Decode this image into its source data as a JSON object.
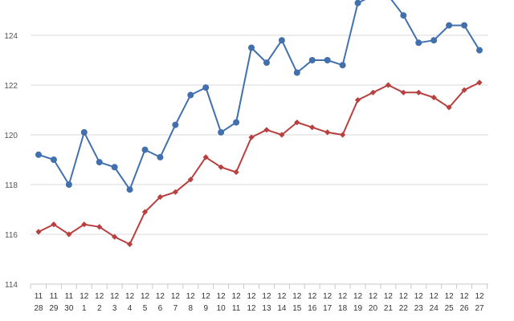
{
  "colors": {
    "series_blue": "#4170ad",
    "series_red": "#b8403f",
    "grid": "#d9d9d9"
  },
  "chart_data": {
    "type": "line",
    "x": [
      [
        "11",
        "28"
      ],
      [
        "11",
        "29"
      ],
      [
        "11",
        "30"
      ],
      [
        "12",
        "1"
      ],
      [
        "12",
        "2"
      ],
      [
        "12",
        "3"
      ],
      [
        "12",
        "4"
      ],
      [
        "12",
        "5"
      ],
      [
        "12",
        "6"
      ],
      [
        "12",
        "7"
      ],
      [
        "12",
        "8"
      ],
      [
        "12",
        "9"
      ],
      [
        "12",
        "10"
      ],
      [
        "12",
        "11"
      ],
      [
        "12",
        "12"
      ],
      [
        "12",
        "13"
      ],
      [
        "12",
        "14"
      ],
      [
        "12",
        "15"
      ],
      [
        "12",
        "16"
      ],
      [
        "12",
        "17"
      ],
      [
        "12",
        "18"
      ],
      [
        "12",
        "19"
      ],
      [
        "12",
        "20"
      ],
      [
        "12",
        "21"
      ],
      [
        "12",
        "22"
      ],
      [
        "12",
        "23"
      ],
      [
        "12",
        "24"
      ],
      [
        "12",
        "25"
      ],
      [
        "12",
        "26"
      ],
      [
        "12",
        "27"
      ]
    ],
    "series": [
      {
        "marker": "circle",
        "color": "#4170ad",
        "values": [
          119.2,
          119.0,
          118.0,
          120.1,
          118.9,
          118.7,
          117.8,
          119.4,
          119.1,
          120.4,
          121.6,
          121.9,
          120.1,
          120.5,
          123.5,
          122.9,
          123.8,
          122.5,
          123.0,
          123.0,
          122.8,
          125.3,
          125.6,
          125.6,
          124.8,
          123.7,
          123.8,
          124.4,
          124.4,
          123.4
        ]
      },
      {
        "marker": "diamond",
        "color": "#b8403f",
        "values": [
          116.1,
          116.4,
          116.0,
          116.4,
          116.3,
          115.9,
          115.6,
          116.9,
          117.5,
          117.7,
          118.2,
          119.1,
          118.7,
          118.5,
          119.9,
          120.2,
          120.0,
          120.5,
          120.3,
          120.1,
          120.0,
          121.4,
          121.7,
          122.0,
          121.7,
          121.7,
          121.5,
          121.1,
          121.8,
          122.1
        ]
      }
    ],
    "yticks": [
      "114",
      "116",
      "118",
      "120",
      "122",
      "124"
    ],
    "ylim": [
      114,
      126
    ],
    "grid": true,
    "title": "",
    "xlabel": "",
    "ylabel": ""
  }
}
